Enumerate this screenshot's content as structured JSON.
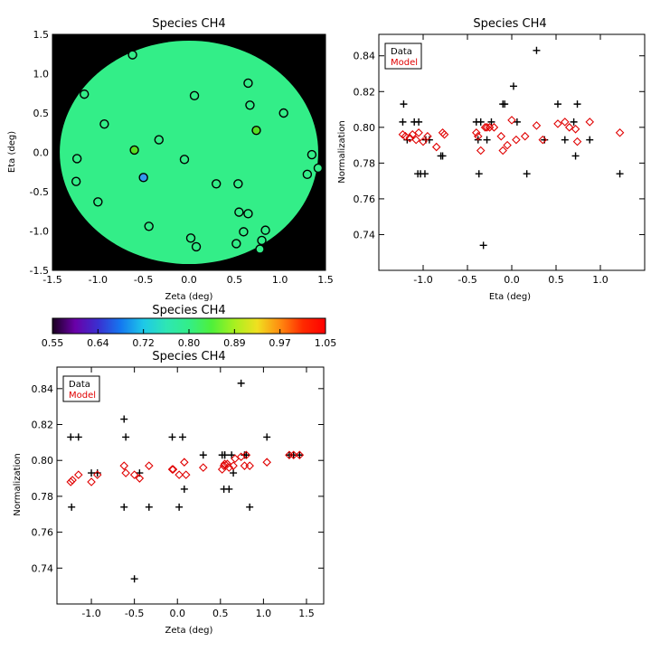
{
  "chart_data": [
    {
      "id": "map",
      "type": "scatter",
      "title": "Species CH4",
      "xlabel": "Zeta (deg)",
      "ylabel": "Eta (deg)",
      "xlim": [
        -1.5,
        1.5
      ],
      "ylim": [
        -1.5,
        1.5
      ],
      "xticks": [
        -1.5,
        -1.0,
        -0.5,
        0.0,
        0.5,
        1.0,
        1.5
      ],
      "yticks": [
        -1.5,
        -1.0,
        -0.5,
        0.0,
        0.5,
        1.0,
        1.5
      ],
      "background_color": "#000000",
      "field_color": "#33ee88",
      "field_radius_deg": 1.42,
      "points": [
        {
          "x": -0.62,
          "y": 1.24,
          "c": "#33ee88"
        },
        {
          "x": -1.15,
          "y": 0.74,
          "c": "#33ee88"
        },
        {
          "x": 0.06,
          "y": 0.72,
          "c": "#33ee88"
        },
        {
          "x": 0.65,
          "y": 0.88,
          "c": "#33ee88"
        },
        {
          "x": 0.67,
          "y": 0.6,
          "c": "#33ee88"
        },
        {
          "x": 1.04,
          "y": 0.5,
          "c": "#33ee88"
        },
        {
          "x": -0.93,
          "y": 0.36,
          "c": "#33ee88"
        },
        {
          "x": 0.74,
          "y": 0.28,
          "c": "#55dd22"
        },
        {
          "x": -0.33,
          "y": 0.16,
          "c": "#33ee88"
        },
        {
          "x": -0.6,
          "y": 0.03,
          "c": "#55dd22"
        },
        {
          "x": -1.23,
          "y": -0.08,
          "c": "#33ee88"
        },
        {
          "x": -0.05,
          "y": -0.09,
          "c": "#33ee88"
        },
        {
          "x": 1.35,
          "y": -0.03,
          "c": "#33ee88"
        },
        {
          "x": 1.42,
          "y": -0.2,
          "c": "#33ee88"
        },
        {
          "x": 1.3,
          "y": -0.28,
          "c": "#33ee88"
        },
        {
          "x": -0.5,
          "y": -0.32,
          "c": "#3399ee"
        },
        {
          "x": -1.24,
          "y": -0.37,
          "c": "#33ee88"
        },
        {
          "x": 0.3,
          "y": -0.4,
          "c": "#33ee88"
        },
        {
          "x": 0.54,
          "y": -0.4,
          "c": "#33ee88"
        },
        {
          "x": -1.0,
          "y": -0.63,
          "c": "#33ee88"
        },
        {
          "x": 0.55,
          "y": -0.76,
          "c": "#33ee88"
        },
        {
          "x": 0.65,
          "y": -0.78,
          "c": "#33ee88"
        },
        {
          "x": -0.44,
          "y": -0.94,
          "c": "#33ee88"
        },
        {
          "x": 0.6,
          "y": -1.01,
          "c": "#33ee88"
        },
        {
          "x": 0.84,
          "y": -0.99,
          "c": "#33ee88"
        },
        {
          "x": 0.02,
          "y": -1.09,
          "c": "#33ee88"
        },
        {
          "x": 0.52,
          "y": -1.16,
          "c": "#33ee88"
        },
        {
          "x": 0.8,
          "y": -1.12,
          "c": "#33ee88"
        },
        {
          "x": 0.08,
          "y": -1.2,
          "c": "#33ee88"
        },
        {
          "x": 0.78,
          "y": -1.23,
          "c": "#33ee88"
        }
      ]
    },
    {
      "id": "colorbar",
      "type": "heatmap",
      "title": "Species CH4",
      "range": [
        0.55,
        1.05
      ],
      "tick_labels": [
        "0.55",
        "0.64",
        "0.72",
        "0.80",
        "0.89",
        "0.97",
        "1.05"
      ],
      "colormap": [
        "#1a0020",
        "#6a00a8",
        "#3a2fd0",
        "#1478f0",
        "#1ec8e8",
        "#2ee6b4",
        "#33ee88",
        "#4ef03a",
        "#a8f020",
        "#f0e020",
        "#ff8c10",
        "#ff2a00",
        "#ff0000"
      ]
    },
    {
      "id": "eta",
      "type": "scatter",
      "title": "Species CH4",
      "xlabel": "Eta (deg)",
      "ylabel": "Normalization",
      "xlim": [
        -1.5,
        1.5
      ],
      "ylim": [
        0.72,
        0.852
      ],
      "xticks": [
        -1.0,
        -0.5,
        0.0,
        0.5,
        1.0
      ],
      "yticks": [
        0.74,
        0.76,
        0.78,
        0.8,
        0.82,
        0.84
      ],
      "legend": {
        "position": "top-left",
        "entries": [
          "Data",
          "Model"
        ]
      },
      "series": [
        {
          "name": "Data",
          "marker": "plus",
          "color": "#000000",
          "x": [
            -1.22,
            -1.23,
            -1.18,
            -1.1,
            -1.05,
            -1.03,
            -0.98,
            -0.97,
            -0.93,
            -1.06,
            -0.78,
            -0.8,
            -0.4,
            -0.37,
            -0.38,
            -0.32,
            -0.35,
            -0.28,
            -0.23,
            -0.1,
            -0.08,
            0.02,
            0.06,
            0.17,
            0.28,
            0.37,
            0.52,
            0.6,
            0.7,
            0.74,
            0.72,
            0.88,
            1.22
          ],
          "y": [
            0.813,
            0.803,
            0.793,
            0.803,
            0.803,
            0.774,
            0.774,
            0.793,
            0.793,
            0.774,
            0.784,
            0.784,
            0.803,
            0.774,
            0.793,
            0.734,
            0.803,
            0.793,
            0.803,
            0.813,
            0.813,
            0.823,
            0.803,
            0.774,
            0.843,
            0.793,
            0.813,
            0.793,
            0.803,
            0.813,
            0.784,
            0.793,
            0.774
          ]
        },
        {
          "name": "Model",
          "marker": "diamond",
          "color": "#e00000",
          "x": [
            -1.23,
            -1.2,
            -1.15,
            -1.12,
            -1.08,
            -1.05,
            -1.0,
            -0.95,
            -0.85,
            -0.78,
            -0.76,
            -0.4,
            -0.38,
            -0.35,
            -0.3,
            -0.28,
            -0.25,
            -0.2,
            -0.12,
            -0.1,
            -0.05,
            0.0,
            0.05,
            0.15,
            0.28,
            0.35,
            0.52,
            0.6,
            0.65,
            0.72,
            0.74,
            0.88,
            1.22
          ],
          "y": [
            0.796,
            0.795,
            0.794,
            0.796,
            0.793,
            0.797,
            0.792,
            0.795,
            0.789,
            0.797,
            0.796,
            0.797,
            0.795,
            0.787,
            0.8,
            0.8,
            0.8,
            0.8,
            0.795,
            0.787,
            0.79,
            0.804,
            0.793,
            0.795,
            0.801,
            0.793,
            0.802,
            0.803,
            0.8,
            0.799,
            0.792,
            0.803,
            0.797
          ]
        }
      ]
    },
    {
      "id": "zeta",
      "type": "scatter",
      "title": "Species CH4",
      "xlabel": "Zeta (deg)",
      "ylabel": "Normalization",
      "xlim": [
        -1.4,
        1.7
      ],
      "ylim": [
        0.72,
        0.852
      ],
      "xticks": [
        -1.0,
        -0.5,
        0.0,
        0.5,
        1.0,
        1.5
      ],
      "yticks": [
        0.74,
        0.76,
        0.78,
        0.8,
        0.82,
        0.84
      ],
      "legend": {
        "position": "top-left",
        "entries": [
          "Data",
          "Model"
        ]
      },
      "series": [
        {
          "name": "Data",
          "marker": "plus",
          "color": "#000000",
          "x": [
            -1.23,
            -1.24,
            -1.15,
            -0.93,
            -0.62,
            -0.6,
            -0.62,
            -0.5,
            -0.44,
            -0.33,
            -0.06,
            0.02,
            0.06,
            0.08,
            0.3,
            0.52,
            0.54,
            0.55,
            0.6,
            0.65,
            0.74,
            0.78,
            0.8,
            0.84,
            1.04,
            1.3,
            1.35,
            1.42,
            -1.0,
            0.63,
            0.55
          ],
          "y": [
            0.774,
            0.813,
            0.813,
            0.793,
            0.823,
            0.813,
            0.774,
            0.734,
            0.793,
            0.774,
            0.813,
            0.774,
            0.813,
            0.784,
            0.803,
            0.803,
            0.784,
            0.803,
            0.784,
            0.793,
            0.843,
            0.803,
            0.803,
            0.774,
            0.813,
            0.803,
            0.803,
            0.803,
            0.793,
            0.803,
            0.803
          ]
        },
        {
          "name": "Model",
          "marker": "diamond",
          "color": "#e00000",
          "x": [
            -1.24,
            -1.22,
            -1.15,
            -1.0,
            -0.93,
            -0.62,
            -0.6,
            -0.5,
            -0.44,
            -0.33,
            -0.06,
            -0.05,
            0.02,
            0.08,
            0.1,
            0.3,
            0.52,
            0.54,
            0.55,
            0.58,
            0.6,
            0.65,
            0.67,
            0.74,
            0.78,
            0.8,
            0.84,
            1.04,
            1.3,
            1.35,
            1.42
          ],
          "y": [
            0.788,
            0.789,
            0.792,
            0.788,
            0.792,
            0.797,
            0.793,
            0.792,
            0.79,
            0.797,
            0.795,
            0.795,
            0.792,
            0.799,
            0.792,
            0.796,
            0.795,
            0.797,
            0.798,
            0.798,
            0.796,
            0.797,
            0.801,
            0.802,
            0.797,
            0.803,
            0.797,
            0.799,
            0.803,
            0.803,
            0.803
          ]
        }
      ]
    }
  ]
}
